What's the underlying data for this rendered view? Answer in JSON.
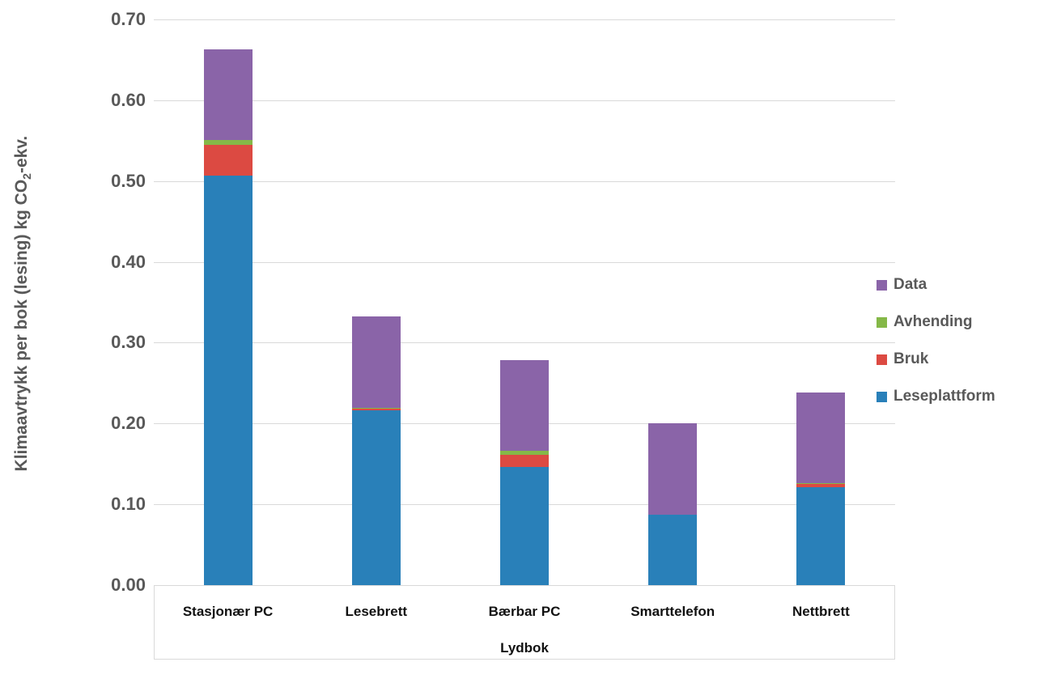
{
  "chart_data": {
    "type": "bar",
    "subtype": "stacked-vertical",
    "title": "",
    "xlabel": "Lydbok",
    "ylabel": "Klimaavtrykk per bok (lesing) kg CO2-ekv.",
    "ylabel_parts": {
      "main": "Klimaavtrykk per bok (lesing) kg CO",
      "sub": "2",
      "tail": "-ekv."
    },
    "categories": [
      "Stasjonær PC",
      "Lesebrett",
      "Bærbar PC",
      "Smarttelefon",
      "Nettbrett"
    ],
    "series": [
      {
        "name": "Leseplattform",
        "color": "#2980b9",
        "values": [
          0.507,
          0.216,
          0.146,
          0.087,
          0.121
        ]
      },
      {
        "name": "Bruk",
        "color": "#dc4a42",
        "values": [
          0.038,
          0.002,
          0.015,
          0.0,
          0.004
        ]
      },
      {
        "name": "Avhending",
        "color": "#85b848",
        "values": [
          0.006,
          0.001,
          0.005,
          0.0,
          0.001
        ]
      },
      {
        "name": "Data",
        "color": "#8a64a8",
        "values": [
          0.112,
          0.113,
          0.112,
          0.113,
          0.112
        ]
      }
    ],
    "totals": [
      0.663,
      0.332,
      0.278,
      0.2,
      0.238
    ],
    "legend_order": [
      "Data",
      "Avhending",
      "Bruk",
      "Leseplattform"
    ],
    "legend_position": "right",
    "ylim": [
      0.0,
      0.7
    ],
    "ytick_step": 0.1,
    "yticks": [
      "0.00",
      "0.10",
      "0.20",
      "0.30",
      "0.40",
      "0.50",
      "0.60",
      "0.70"
    ],
    "grid": true,
    "gridline_color": "#d9d9d9",
    "text_color_axis": "#595959",
    "text_color_categories": "#111111"
  }
}
